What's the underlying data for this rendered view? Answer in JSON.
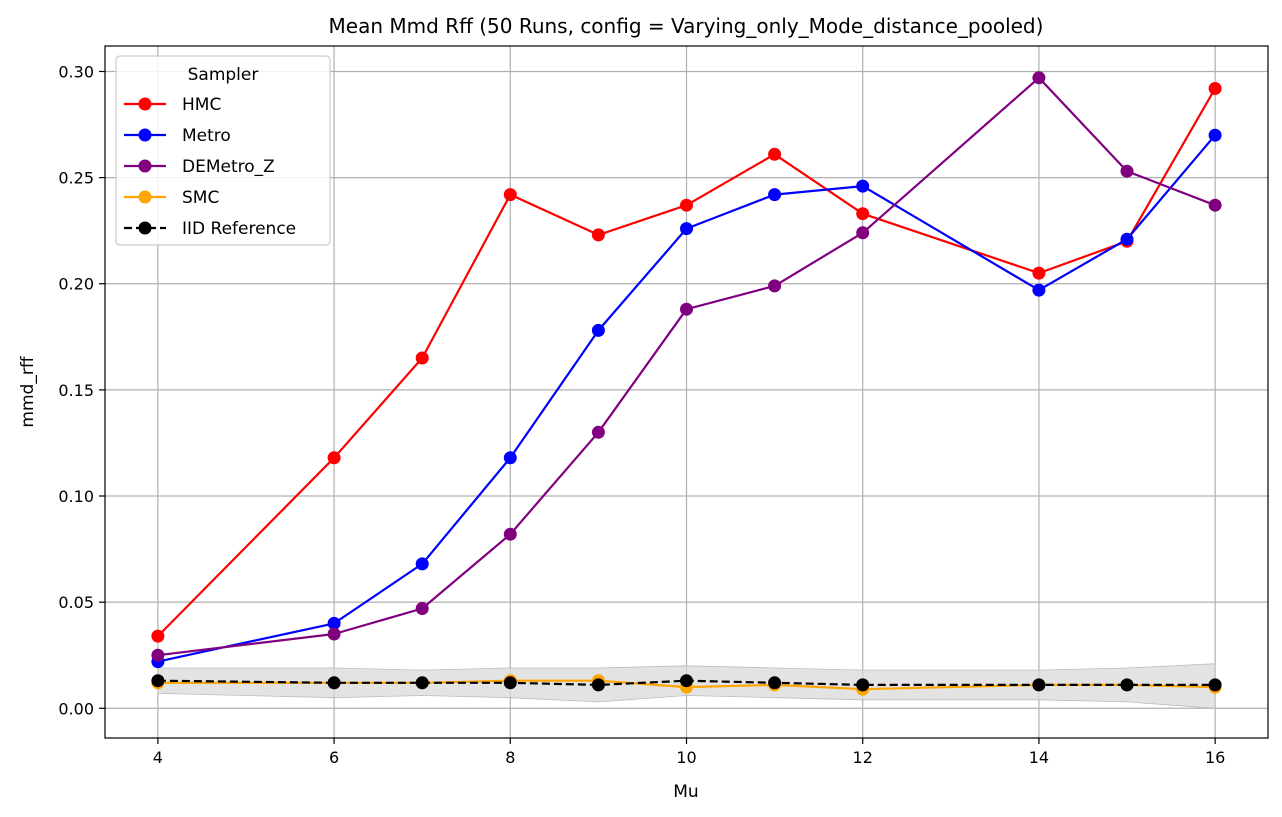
{
  "chart_data": {
    "type": "line",
    "title": "Mean Mmd Rff (50 Runs, config = Varying_only_Mode_distance_pooled)",
    "xlabel": "Mu",
    "ylabel": "mmd_rff",
    "x": [
      4,
      6,
      7,
      8,
      9,
      10,
      11,
      12,
      14,
      15,
      16
    ],
    "xlim": [
      3.4,
      16.6
    ],
    "ylim": [
      -0.014,
      0.312
    ],
    "xticks": [
      "4",
      "6",
      "8",
      "10",
      "12",
      "14",
      "16"
    ],
    "yticks": [
      "0.00",
      "0.05",
      "0.10",
      "0.15",
      "0.20",
      "0.25",
      "0.30"
    ],
    "grid": true,
    "legend": {
      "title": "Sampler",
      "position": "top-left"
    },
    "series": [
      {
        "name": "HMC",
        "color": "#ff0000",
        "style": "solid",
        "marker": "circle",
        "values": [
          0.034,
          0.118,
          0.165,
          0.242,
          0.223,
          0.237,
          0.261,
          0.233,
          0.205,
          0.22,
          0.292
        ]
      },
      {
        "name": "Metro",
        "color": "#0000ff",
        "style": "solid",
        "marker": "circle",
        "values": [
          0.022,
          0.04,
          0.068,
          0.118,
          0.178,
          0.226,
          0.242,
          0.246,
          0.197,
          0.221,
          0.27
        ]
      },
      {
        "name": "DEMetro_Z",
        "color": "#800080",
        "style": "solid",
        "marker": "circle",
        "values": [
          0.025,
          0.035,
          0.047,
          0.082,
          0.13,
          0.188,
          0.199,
          0.224,
          0.297,
          0.253,
          0.237
        ]
      },
      {
        "name": "SMC",
        "color": "#ffa500",
        "style": "solid",
        "marker": "circle",
        "values": [
          0.012,
          0.012,
          0.012,
          0.013,
          0.013,
          0.01,
          0.011,
          0.009,
          0.011,
          0.011,
          0.01
        ]
      },
      {
        "name": "IID Reference",
        "color": "#000000",
        "style": "dashed",
        "marker": "circle",
        "values": [
          0.013,
          0.012,
          0.012,
          0.012,
          0.011,
          0.013,
          0.012,
          0.011,
          0.011,
          0.011,
          0.011
        ],
        "band_lower": [
          0.007,
          0.005,
          0.006,
          0.005,
          0.003,
          0.006,
          0.005,
          0.004,
          0.004,
          0.003,
          0.0
        ],
        "band_upper": [
          0.019,
          0.019,
          0.018,
          0.019,
          0.019,
          0.02,
          0.019,
          0.018,
          0.018,
          0.019,
          0.021
        ],
        "band_color": "#d9d9d9"
      }
    ]
  }
}
